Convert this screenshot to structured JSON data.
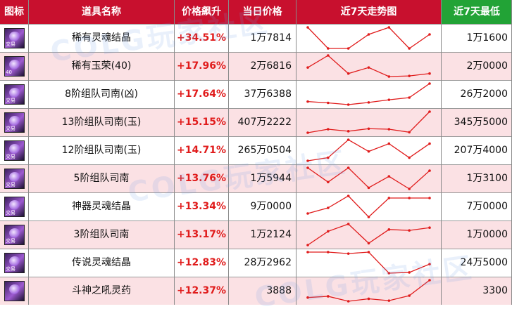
{
  "headers": {
    "icon": "图标",
    "name": "道具名称",
    "rise": "价格飙升",
    "price": "当日价格",
    "trend": "近7天走势图",
    "low": "近7天最低"
  },
  "colors": {
    "header_red": "#c8102e",
    "header_green": "#22a336",
    "rise_red": "#e01b1b",
    "trend_line": "#e01b1b",
    "row_pink": "#fbe1e4"
  },
  "watermark": "COLG玩家社区",
  "rows": [
    {
      "icon": "soul-crystal-icon",
      "icon_tag": "交易",
      "name": "稀有灵魂结晶",
      "rise": "+34.51%",
      "price": "1万7814",
      "low": "1万1600",
      "trend": [
        4,
        1,
        1,
        3,
        4,
        1,
        3
      ]
    },
    {
      "icon": "green-orb-icon",
      "icon_tag": "40",
      "name": "稀有玉荣(40)",
      "rise": "+17.96%",
      "price": "2万6816",
      "low": "2万0000",
      "trend": [
        2,
        4,
        1,
        2,
        0.5,
        0.6,
        1
      ]
    },
    {
      "icon": "bead-icon",
      "icon_tag": "交易",
      "name": "8阶组队司南(凶)",
      "rise": "+17.64%",
      "price": "37万6388",
      "low": "26万2000",
      "trend": [
        0.9,
        0.6,
        0.2,
        0.7,
        1.3,
        1.8,
        5
      ]
    },
    {
      "icon": "bead-icon",
      "icon_tag": "交易",
      "name": "13阶组队司南(玉)",
      "rise": "+15.15%",
      "price": "407万2222",
      "low": "345万5000",
      "trend": [
        0.8,
        1.5,
        1.1,
        1.6,
        1.5,
        0.9,
        5
      ]
    },
    {
      "icon": "bead-icon",
      "icon_tag": "交易",
      "name": "12阶组队司南(玉)",
      "rise": "+14.71%",
      "price": "265万0504",
      "low": "207万4000",
      "trend": [
        0.8,
        1.2,
        3.5,
        2,
        3,
        1.2,
        3
      ]
    },
    {
      "icon": "bead-icon",
      "icon_tag": "交易",
      "name": "5阶组队司南",
      "rise": "+13.76%",
      "price": "1万5944",
      "low": "1万3100",
      "trend": [
        4,
        1.5,
        4,
        0.5,
        2.5,
        0.3,
        3.5
      ]
    },
    {
      "icon": "soul-crystal-icon",
      "icon_tag": "交易",
      "name": "神器灵魂结晶",
      "rise": "+13.34%",
      "price": "9万0000",
      "low": "7万0000",
      "trend": [
        1,
        1.8,
        3.5,
        0.5,
        3.2,
        3.2,
        3.2
      ]
    },
    {
      "icon": "bead-icon",
      "icon_tag": "交易",
      "name": "3阶组队司南",
      "rise": "+13.17%",
      "price": "1万2124",
      "low": "1万0000",
      "trend": [
        1,
        2.5,
        3.3,
        1.2,
        2.7,
        2.6,
        2.9
      ]
    },
    {
      "icon": "soul-crystal-icon",
      "icon_tag": "交易",
      "name": "传说灵魂结晶",
      "rise": "+12.83%",
      "price": "28万2962",
      "low": "24万5000",
      "trend": [
        3,
        3,
        2.8,
        3,
        0.2,
        0.3,
        1.4
      ]
    },
    {
      "icon": "potion-icon",
      "icon_tag": "",
      "name": "斗神之吼灵药",
      "rise": "+12.37%",
      "price": "3888",
      "low": "3300",
      "trend": [
        1.2,
        1.4,
        0.6,
        1,
        0.7,
        1.5,
        4
      ]
    }
  ]
}
